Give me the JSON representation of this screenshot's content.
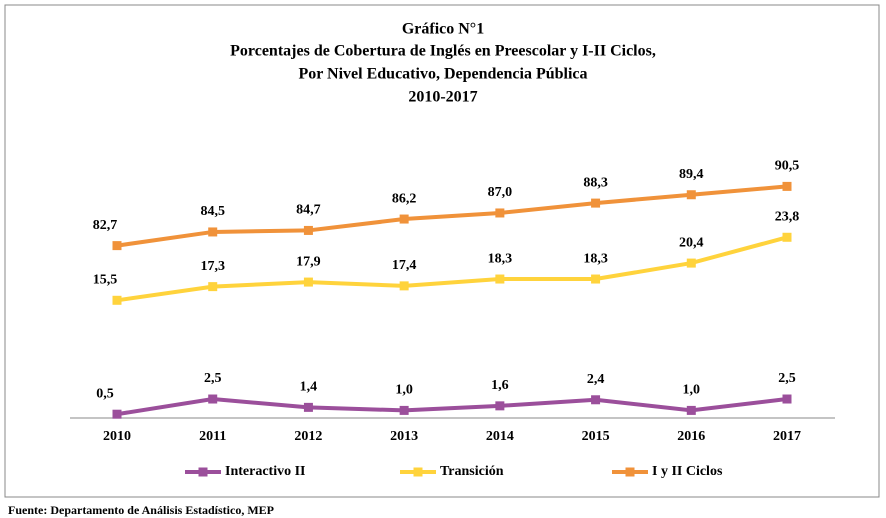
{
  "chart_data": {
    "type": "line",
    "title": "Gráfico N°1",
    "subtitle": [
      "Porcentajes de Cobertura de Inglés en Preescolar y I-II Ciclos,",
      "Por Nivel Educativo, Dependencia Pública",
      "2010-2017"
    ],
    "source": "Fuente: Departamento de Análisis Estadístico, MEP",
    "categories": [
      "2010",
      "2011",
      "2012",
      "2013",
      "2014",
      "2015",
      "2016",
      "2017"
    ],
    "ylim": [
      0,
      32
    ],
    "y2lim": [
      60,
      92
    ],
    "series": [
      {
        "name": "Interactivo II",
        "color": "#9b4f9b",
        "values": [
          0.5,
          2.5,
          1.4,
          1.0,
          1.6,
          2.4,
          1.0,
          2.5
        ],
        "value_labels": [
          "0,5",
          "2,5",
          "1,4",
          "1,0",
          "1,6",
          "2,4",
          "1,0",
          "2,5"
        ]
      },
      {
        "name": "Transición",
        "color": "#ffd33c",
        "values": [
          15.5,
          17.3,
          17.9,
          17.4,
          18.3,
          18.3,
          20.4,
          23.8
        ],
        "value_labels": [
          "15,5",
          "17,3",
          "17,9",
          "17,4",
          "18,3",
          "18,3",
          "20,4",
          "23,8"
        ]
      },
      {
        "name": "I y II Ciclos",
        "color": "#f0923a",
        "axis": "y2",
        "values": [
          82.7,
          84.5,
          84.7,
          86.2,
          87.0,
          88.3,
          89.4,
          90.5
        ],
        "value_labels": [
          "82,7",
          "84,5",
          "84,7",
          "86,2",
          "87,0",
          "88,3",
          "89,4",
          "90,5"
        ]
      }
    ]
  }
}
